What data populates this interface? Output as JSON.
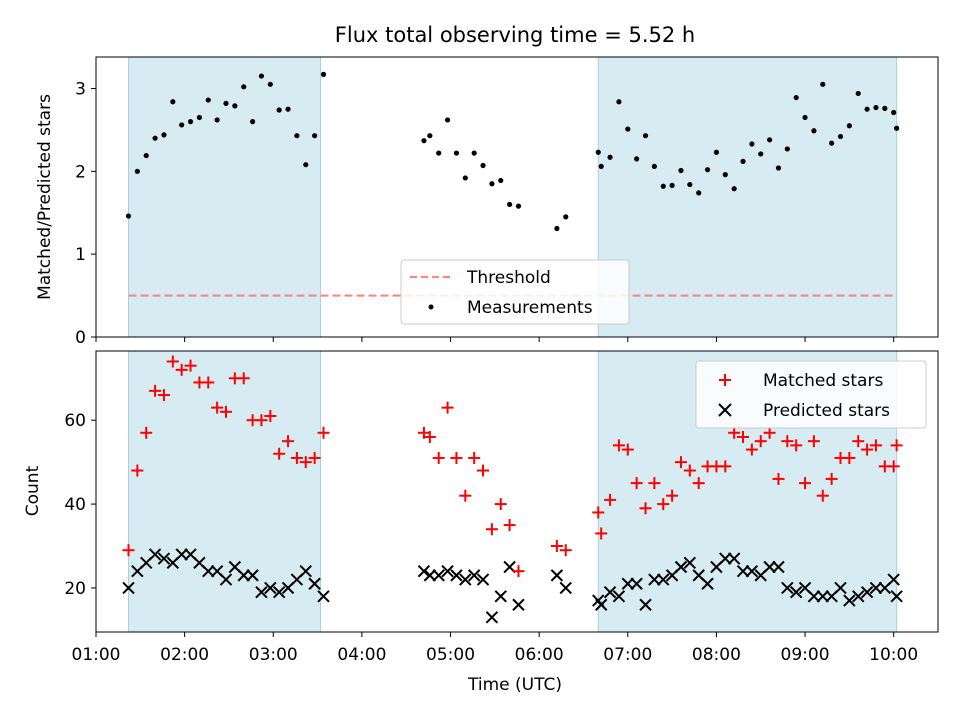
{
  "chart_data": [
    {
      "type": "scatter",
      "title": "Flux total observing time = 5.52 h",
      "ylabel": "Matched/Predicted stars",
      "xlabel": "",
      "xlim": [
        "01:00",
        "10:30"
      ],
      "ylim": [
        0,
        3.38
      ],
      "yticks": [
        0,
        1,
        2,
        3
      ],
      "shaded_intervals": [
        [
          "01:22",
          "03:32"
        ],
        [
          "06:40",
          "10:02"
        ]
      ],
      "series": [
        {
          "name": "Measurements",
          "x": [
            "01:22",
            "01:28",
            "01:34",
            "01:40",
            "01:46",
            "01:52",
            "01:58",
            "02:04",
            "02:10",
            "02:16",
            "02:22",
            "02:28",
            "02:34",
            "02:40",
            "02:46",
            "02:52",
            "02:58",
            "03:04",
            "03:10",
            "03:16",
            "03:22",
            "03:28",
            "03:34",
            "04:42",
            "04:46",
            "04:52",
            "04:58",
            "05:04",
            "05:10",
            "05:16",
            "05:22",
            "05:28",
            "05:34",
            "05:40",
            "05:46",
            "06:12",
            "06:18",
            "06:40",
            "06:42",
            "06:48",
            "06:54",
            "07:00",
            "07:06",
            "07:12",
            "07:18",
            "07:24",
            "07:30",
            "07:36",
            "07:42",
            "07:48",
            "07:54",
            "08:00",
            "08:06",
            "08:12",
            "08:18",
            "08:24",
            "08:30",
            "08:36",
            "08:42",
            "08:48",
            "08:54",
            "09:00",
            "09:06",
            "09:12",
            "09:18",
            "09:24",
            "09:30",
            "09:36",
            "09:42",
            "09:48",
            "09:54",
            "10:00",
            "10:02"
          ],
          "y": [
            1.46,
            2.0,
            2.19,
            2.4,
            2.44,
            2.84,
            2.56,
            2.6,
            2.65,
            2.86,
            2.62,
            2.82,
            2.79,
            3.02,
            2.6,
            3.15,
            3.05,
            2.74,
            2.75,
            2.43,
            2.08,
            2.43,
            3.17,
            2.37,
            2.43,
            2.22,
            2.62,
            2.22,
            1.92,
            2.22,
            2.07,
            1.85,
            1.89,
            1.6,
            1.58,
            1.31,
            1.45,
            2.23,
            2.06,
            2.17,
            2.84,
            2.51,
            2.15,
            2.43,
            2.06,
            1.82,
            1.83,
            2.01,
            1.84,
            1.74,
            2.02,
            2.23,
            1.96,
            1.79,
            2.12,
            2.33,
            2.21,
            2.38,
            2.04,
            2.27,
            2.89,
            2.65,
            2.49,
            3.05,
            2.34,
            2.42,
            2.55,
            2.94,
            2.75,
            2.77,
            2.76,
            2.71,
            2.52
          ]
        },
        {
          "name": "Threshold",
          "x": [
            "01:22",
            "10:02"
          ],
          "y": [
            0.5,
            0.5
          ],
          "color": "#f28b82"
        }
      ],
      "legend": {
        "placement": "lower center"
      }
    },
    {
      "type": "scatter",
      "title": "",
      "xlabel": "Time (UTC)",
      "ylabel": "Count",
      "xlim": [
        "01:00",
        "10:30"
      ],
      "ylim": [
        9.5,
        76.5
      ],
      "yticks": [
        20,
        40,
        60
      ],
      "xticks": [
        "01:00",
        "02:00",
        "03:00",
        "04:00",
        "05:00",
        "06:00",
        "07:00",
        "08:00",
        "09:00",
        "10:00"
      ],
      "shaded_intervals": [
        [
          "01:22",
          "03:32"
        ],
        [
          "06:40",
          "10:02"
        ]
      ],
      "series": [
        {
          "name": "Matched stars",
          "marker": "+",
          "color": "#ff0000",
          "x": [
            "01:22",
            "01:28",
            "01:34",
            "01:40",
            "01:46",
            "01:52",
            "01:58",
            "02:04",
            "02:10",
            "02:16",
            "02:22",
            "02:28",
            "02:34",
            "02:40",
            "02:46",
            "02:52",
            "02:58",
            "03:04",
            "03:10",
            "03:16",
            "03:22",
            "03:28",
            "03:34",
            "04:42",
            "04:46",
            "04:52",
            "04:58",
            "05:04",
            "05:10",
            "05:16",
            "05:22",
            "05:28",
            "05:34",
            "05:40",
            "05:46",
            "06:12",
            "06:18",
            "06:40",
            "06:42",
            "06:48",
            "06:54",
            "07:00",
            "07:06",
            "07:12",
            "07:18",
            "07:24",
            "07:30",
            "07:36",
            "07:42",
            "07:48",
            "07:54",
            "08:00",
            "08:06",
            "08:12",
            "08:18",
            "08:24",
            "08:30",
            "08:36",
            "08:42",
            "08:48",
            "08:54",
            "09:00",
            "09:06",
            "09:12",
            "09:18",
            "09:24",
            "09:30",
            "09:36",
            "09:42",
            "09:48",
            "09:54",
            "10:00",
            "10:02"
          ],
          "y": [
            29,
            48,
            57,
            67,
            66,
            74,
            72,
            73,
            69,
            69,
            63,
            62,
            70,
            70,
            60,
            60,
            61,
            52,
            55,
            51,
            50,
            51,
            57,
            57,
            56,
            51,
            63,
            51,
            42,
            51,
            48,
            34,
            40,
            35,
            24,
            30,
            29,
            38,
            33,
            41,
            54,
            53,
            45,
            39,
            45,
            40,
            42,
            50,
            48,
            45,
            49,
            49,
            49,
            57,
            56,
            53,
            55,
            57,
            46,
            55,
            54,
            45,
            55,
            42,
            46,
            51,
            51,
            55,
            53,
            54,
            49,
            49,
            54
          ]
        },
        {
          "name": "Predicted stars",
          "marker": "x",
          "color": "#000000",
          "x": [
            "01:22",
            "01:28",
            "01:34",
            "01:40",
            "01:46",
            "01:52",
            "01:58",
            "02:04",
            "02:10",
            "02:16",
            "02:22",
            "02:28",
            "02:34",
            "02:40",
            "02:46",
            "02:52",
            "02:58",
            "03:04",
            "03:10",
            "03:16",
            "03:22",
            "03:28",
            "03:34",
            "04:42",
            "04:46",
            "04:52",
            "04:58",
            "05:04",
            "05:10",
            "05:16",
            "05:22",
            "05:28",
            "05:34",
            "05:40",
            "05:46",
            "06:12",
            "06:18",
            "06:40",
            "06:42",
            "06:48",
            "06:54",
            "07:00",
            "07:06",
            "07:12",
            "07:18",
            "07:24",
            "07:30",
            "07:36",
            "07:42",
            "07:48",
            "07:54",
            "08:00",
            "08:06",
            "08:12",
            "08:18",
            "08:24",
            "08:30",
            "08:36",
            "08:42",
            "08:48",
            "08:54",
            "09:00",
            "09:06",
            "09:12",
            "09:18",
            "09:24",
            "09:30",
            "09:36",
            "09:42",
            "09:48",
            "09:54",
            "10:00",
            "10:02"
          ],
          "y": [
            20,
            24,
            26,
            28,
            27,
            26,
            28,
            28,
            26,
            24,
            24,
            22,
            25,
            23,
            23,
            19,
            20,
            19,
            20,
            22,
            24,
            21,
            18,
            24,
            23,
            23,
            24,
            23,
            22,
            23,
            22,
            13,
            18,
            25,
            16,
            23,
            20,
            17,
            16,
            19,
            18,
            21,
            21,
            16,
            22,
            22,
            23,
            25,
            26,
            23,
            21,
            25,
            27,
            27,
            24,
            24,
            23,
            25,
            25,
            20,
            19,
            20,
            18,
            18,
            18,
            20,
            17,
            18,
            19,
            20,
            20,
            22,
            18
          ]
        }
      ],
      "legend": {
        "placement": "upper right"
      }
    }
  ]
}
